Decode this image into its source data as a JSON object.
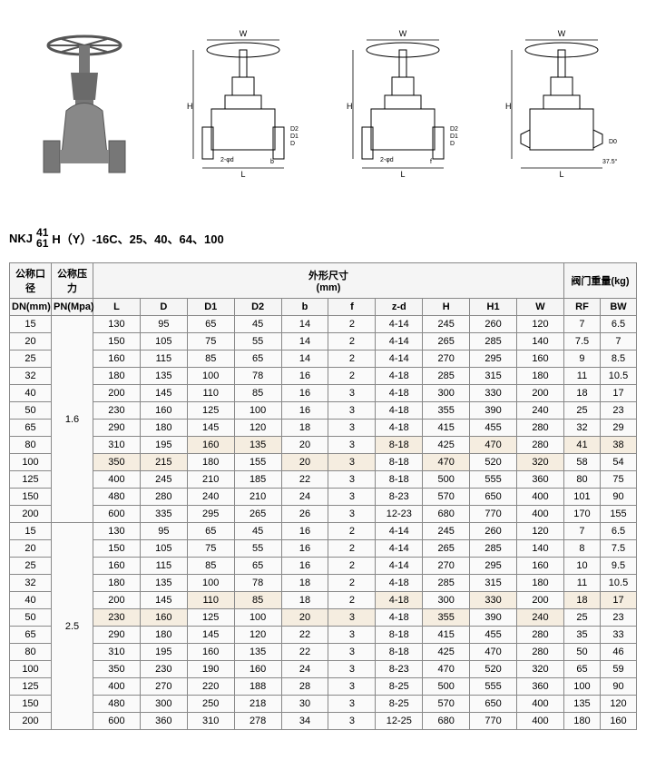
{
  "model": {
    "prefix": "NKJ",
    "frac_top": "41",
    "frac_bot": "61",
    "suffix": "H（Y）-16C、25、40、64、100"
  },
  "table": {
    "header_group1": "公称口径",
    "header_group2": "公称压力",
    "header_group3": "外形尺寸\n(mm)",
    "header_group4": "阀门重量(kg)",
    "col_dn": "DN(mm)",
    "col_pn": "PN(Mpa)",
    "cols_dim": [
      "L",
      "D",
      "D1",
      "D2",
      "b",
      "f",
      "z-d",
      "H",
      "H1",
      "W"
    ],
    "cols_wt": [
      "RF",
      "BW"
    ],
    "groups": [
      {
        "pn": "1.6",
        "rows": [
          {
            "dn": "15",
            "L": "130",
            "D": "95",
            "D1": "65",
            "D2": "45",
            "b": "14",
            "f": "2",
            "zd": "4-14",
            "H": "245",
            "H1": "260",
            "W": "120",
            "RF": "7",
            "BW": "6.5"
          },
          {
            "dn": "20",
            "L": "150",
            "D": "105",
            "D1": "75",
            "D2": "55",
            "b": "14",
            "f": "2",
            "zd": "4-14",
            "H": "265",
            "H1": "285",
            "W": "140",
            "RF": "7.5",
            "BW": "7"
          },
          {
            "dn": "25",
            "L": "160",
            "D": "115",
            "D1": "85",
            "D2": "65",
            "b": "14",
            "f": "2",
            "zd": "4-14",
            "H": "270",
            "H1": "295",
            "W": "160",
            "RF": "9",
            "BW": "8.5"
          },
          {
            "dn": "32",
            "L": "180",
            "D": "135",
            "D1": "100",
            "D2": "78",
            "b": "16",
            "f": "2",
            "zd": "4-18",
            "H": "285",
            "H1": "315",
            "W": "180",
            "RF": "11",
            "BW": "10.5"
          },
          {
            "dn": "40",
            "L": "200",
            "D": "145",
            "D1": "110",
            "D2": "85",
            "b": "16",
            "f": "3",
            "zd": "4-18",
            "H": "300",
            "H1": "330",
            "W": "200",
            "RF": "18",
            "BW": "17"
          },
          {
            "dn": "50",
            "L": "230",
            "D": "160",
            "D1": "125",
            "D2": "100",
            "b": "16",
            "f": "3",
            "zd": "4-18",
            "H": "355",
            "H1": "390",
            "W": "240",
            "RF": "25",
            "BW": "23"
          },
          {
            "dn": "65",
            "L": "290",
            "D": "180",
            "D1": "145",
            "D2": "120",
            "b": "18",
            "f": "3",
            "zd": "4-18",
            "H": "415",
            "H1": "455",
            "W": "280",
            "RF": "32",
            "BW": "29"
          },
          {
            "dn": "80",
            "L": "310",
            "D": "195",
            "D1": "160",
            "D2": "135",
            "b": "20",
            "f": "3",
            "zd": "8-18",
            "H": "425",
            "H1": "470",
            "W": "280",
            "RF": "41",
            "BW": "38"
          },
          {
            "dn": "100",
            "L": "350",
            "D": "215",
            "D1": "180",
            "D2": "155",
            "b": "20",
            "f": "3",
            "zd": "8-18",
            "H": "470",
            "H1": "520",
            "W": "320",
            "RF": "58",
            "BW": "54"
          },
          {
            "dn": "125",
            "L": "400",
            "D": "245",
            "D1": "210",
            "D2": "185",
            "b": "22",
            "f": "3",
            "zd": "8-18",
            "H": "500",
            "H1": "555",
            "W": "360",
            "RF": "80",
            "BW": "75"
          },
          {
            "dn": "150",
            "L": "480",
            "D": "280",
            "D1": "240",
            "D2": "210",
            "b": "24",
            "f": "3",
            "zd": "8-23",
            "H": "570",
            "H1": "650",
            "W": "400",
            "RF": "101",
            "BW": "90"
          },
          {
            "dn": "200",
            "L": "600",
            "D": "335",
            "D1": "295",
            "D2": "265",
            "b": "26",
            "f": "3",
            "zd": "12-23",
            "H": "680",
            "H1": "770",
            "W": "400",
            "RF": "170",
            "BW": "155"
          }
        ]
      },
      {
        "pn": "2.5",
        "rows": [
          {
            "dn": "15",
            "L": "130",
            "D": "95",
            "D1": "65",
            "D2": "45",
            "b": "16",
            "f": "2",
            "zd": "4-14",
            "H": "245",
            "H1": "260",
            "W": "120",
            "RF": "7",
            "BW": "6.5"
          },
          {
            "dn": "20",
            "L": "150",
            "D": "105",
            "D1": "75",
            "D2": "55",
            "b": "16",
            "f": "2",
            "zd": "4-14",
            "H": "265",
            "H1": "285",
            "W": "140",
            "RF": "8",
            "BW": "7.5"
          },
          {
            "dn": "25",
            "L": "160",
            "D": "115",
            "D1": "85",
            "D2": "65",
            "b": "16",
            "f": "2",
            "zd": "4-14",
            "H": "270",
            "H1": "295",
            "W": "160",
            "RF": "10",
            "BW": "9.5"
          },
          {
            "dn": "32",
            "L": "180",
            "D": "135",
            "D1": "100",
            "D2": "78",
            "b": "18",
            "f": "2",
            "zd": "4-18",
            "H": "285",
            "H1": "315",
            "W": "180",
            "RF": "11",
            "BW": "10.5"
          },
          {
            "dn": "40",
            "L": "200",
            "D": "145",
            "D1": "110",
            "D2": "85",
            "b": "18",
            "f": "2",
            "zd": "4-18",
            "H": "300",
            "H1": "330",
            "W": "200",
            "RF": "18",
            "BW": "17"
          },
          {
            "dn": "50",
            "L": "230",
            "D": "160",
            "D1": "125",
            "D2": "100",
            "b": "20",
            "f": "3",
            "zd": "4-18",
            "H": "355",
            "H1": "390",
            "W": "240",
            "RF": "25",
            "BW": "23"
          },
          {
            "dn": "65",
            "L": "290",
            "D": "180",
            "D1": "145",
            "D2": "120",
            "b": "22",
            "f": "3",
            "zd": "8-18",
            "H": "415",
            "H1": "455",
            "W": "280",
            "RF": "35",
            "BW": "33"
          },
          {
            "dn": "80",
            "L": "310",
            "D": "195",
            "D1": "160",
            "D2": "135",
            "b": "22",
            "f": "3",
            "zd": "8-18",
            "H": "425",
            "H1": "470",
            "W": "280",
            "RF": "50",
            "BW": "46"
          },
          {
            "dn": "100",
            "L": "350",
            "D": "230",
            "D1": "190",
            "D2": "160",
            "b": "24",
            "f": "3",
            "zd": "8-23",
            "H": "470",
            "H1": "520",
            "W": "320",
            "RF": "65",
            "BW": "59"
          },
          {
            "dn": "125",
            "L": "400",
            "D": "270",
            "D1": "220",
            "D2": "188",
            "b": "28",
            "f": "3",
            "zd": "8-25",
            "H": "500",
            "H1": "555",
            "W": "360",
            "RF": "100",
            "BW": "90"
          },
          {
            "dn": "150",
            "L": "480",
            "D": "300",
            "D1": "250",
            "D2": "218",
            "b": "30",
            "f": "3",
            "zd": "8-25",
            "H": "570",
            "H1": "650",
            "W": "400",
            "RF": "135",
            "BW": "120"
          },
          {
            "dn": "200",
            "L": "600",
            "D": "360",
            "D1": "310",
            "D2": "278",
            "b": "34",
            "f": "3",
            "zd": "12-25",
            "H": "680",
            "H1": "770",
            "W": "400",
            "RF": "180",
            "BW": "160"
          }
        ]
      }
    ]
  },
  "drawing_labels": {
    "W": "W",
    "L": "L",
    "H": "H",
    "D": "D",
    "D1": "D1",
    "D2": "D2",
    "b": "b",
    "f": "f",
    "zd": "z-φd"
  }
}
